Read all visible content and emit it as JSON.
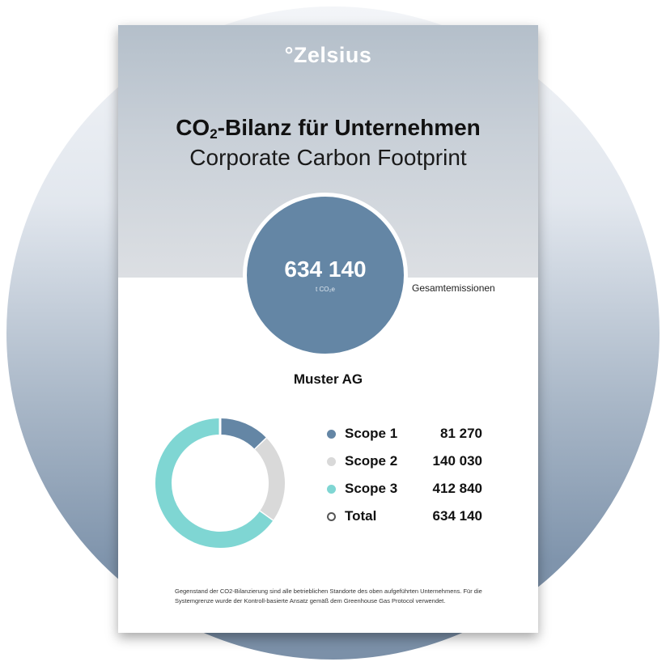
{
  "brand": {
    "logo_text": "°Zelsius"
  },
  "header": {
    "title_de_prefix": "CO",
    "title_de_sub": "2",
    "title_de_suffix": "-Bilanz für Unternehmen",
    "title_en": "Corporate Carbon Footprint"
  },
  "summary": {
    "total_value": "634 140",
    "total_unit": "t CO₂e",
    "total_label": "Gesamtemissionen",
    "company": "Muster AG"
  },
  "chart_data": {
    "type": "pie",
    "categories": [
      "Scope 1",
      "Scope 2",
      "Scope 3"
    ],
    "values": [
      81270,
      140030,
      412840
    ],
    "colors": [
      "#6486a5",
      "#d9d9d9",
      "#7fd6d3"
    ],
    "total": 634140
  },
  "legend": [
    {
      "name": "Scope 1",
      "value": "81 270",
      "color": "#6486a5",
      "filled": true
    },
    {
      "name": "Scope 2",
      "value": "140 030",
      "color": "#d9d9d9",
      "filled": true
    },
    {
      "name": "Scope 3",
      "value": "412 840",
      "color": "#7fd6d3",
      "filled": true
    },
    {
      "name": "Total",
      "value": "634 140",
      "color": "#555555",
      "filled": false
    }
  ],
  "footnote": {
    "text": "Gegenstand der CO2-Bilanzierung sind alle betrieblichen Standorte des oben aufgeführten Unternehmens. Für die Systemgrenze wurde der Kontroll-basierte Ansatz gemäß dem Greenhouse Gas Protocol verwendet."
  }
}
